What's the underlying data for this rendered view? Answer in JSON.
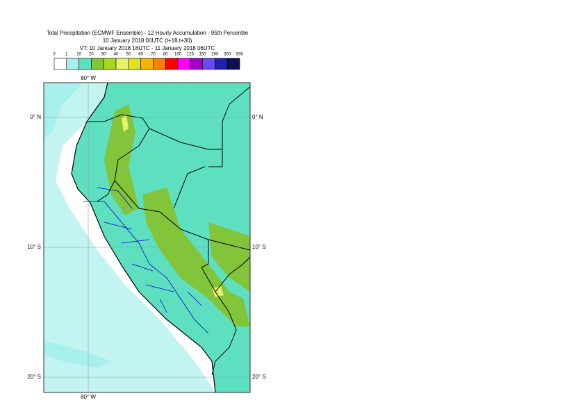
{
  "header": {
    "title_lines": [
      "Total Precipitation (ECMWF Ensemble) - 12 Hourly Accumulation - 95th Percentile",
      "10 January 2018 00UTC (t+18,t+30)",
      "VT: 10 January 2018 18UTC - 11 January 2018 06UTC"
    ]
  },
  "legend": {
    "levels": [
      0,
      1,
      10,
      20,
      30,
      40,
      50,
      60,
      70,
      80,
      100,
      125,
      150,
      200,
      300,
      500
    ],
    "colors": [
      "#ffffff",
      "#a8f0ec",
      "#5ee0c0",
      "#82c43a",
      "#a6d81e",
      "#e6f26a",
      "#e0e020",
      "#f4b400",
      "#f48200",
      "#ff0000",
      "#ff00ff",
      "#a400c8",
      "#6a48f6",
      "#2020a8",
      "#101050"
    ]
  },
  "map": {
    "lon_labels": [
      "80° W",
      "80° W"
    ],
    "lat_labels": [
      "0° N",
      "10° S",
      "20° S"
    ]
  }
}
